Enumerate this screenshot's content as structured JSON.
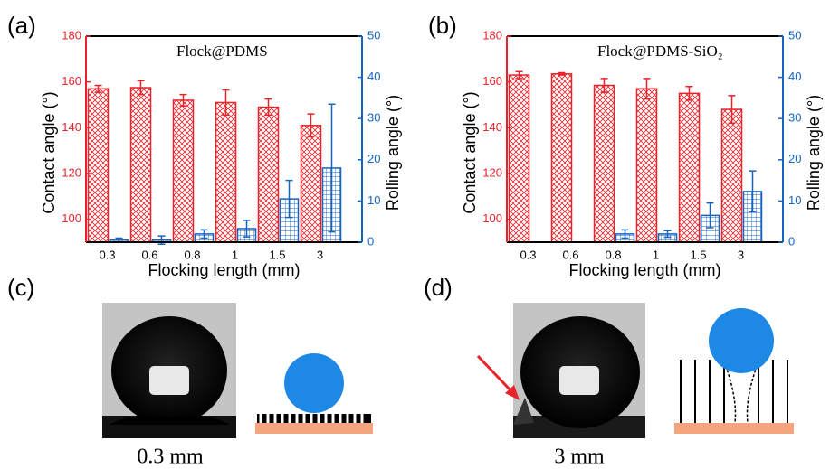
{
  "chart_data": [
    {
      "type": "bar",
      "panel": "(a)",
      "title": "Flock@PDMS",
      "xlabel": "Flocking length (mm)",
      "ylabel": "Contact angle (°)",
      "y2label": "Rolling angle (°)",
      "categories": [
        "0.3",
        "0.6",
        "0.8",
        "1",
        "1.5",
        "3"
      ],
      "series": [
        {
          "color": "#e8232a",
          "values": [
            157,
            157.5,
            152,
            151,
            149,
            141
          ],
          "errors": [
            1.5,
            3,
            2.5,
            5.5,
            3.5,
            5
          ]
        },
        {
          "color": "#1565c0",
          "axis": "y2",
          "values": [
            0.5,
            0.5,
            2,
            3.3,
            10.5,
            18
          ],
          "errors": [
            0.5,
            1,
            1,
            2,
            4.5,
            15.5
          ]
        }
      ],
      "ylim": [
        90,
        180
      ],
      "yticks": [
        100,
        120,
        140,
        160,
        180
      ],
      "y2lim": [
        0,
        50
      ],
      "y2ticks": [
        0,
        10,
        20,
        30,
        40,
        50
      ]
    },
    {
      "type": "bar",
      "panel": "(b)",
      "title": "Flock@PDMS-SiO₂",
      "xlabel": "Flocking length (mm)",
      "ylabel": "Contact angle (°)",
      "y2label": "Rolling angle (°)",
      "categories": [
        "0.3",
        "0.6",
        "0.8",
        "1",
        "1.5",
        "3"
      ],
      "series": [
        {
          "color": "#e8232a",
          "values": [
            163,
            163.5,
            158.5,
            157,
            155,
            148
          ],
          "errors": [
            1.5,
            0.5,
            3,
            4.5,
            3,
            6
          ]
        },
        {
          "color": "#1565c0",
          "axis": "y2",
          "values": [
            0,
            0,
            2,
            2,
            6.5,
            12.3
          ],
          "errors": [
            0,
            0,
            1,
            0.8,
            3,
            5
          ]
        }
      ],
      "ylim": [
        90,
        180
      ],
      "yticks": [
        100,
        120,
        140,
        160,
        180
      ],
      "y2lim": [
        0,
        50
      ],
      "y2ticks": [
        0,
        10,
        20,
        30,
        40,
        50
      ]
    }
  ],
  "figure": {
    "labels": [
      "(c)",
      "(d)"
    ],
    "captions": [
      "0.3 mm",
      "3 mm"
    ]
  }
}
